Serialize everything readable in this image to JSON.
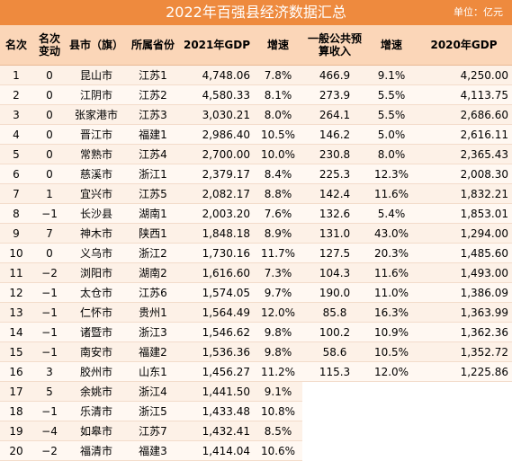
{
  "header": {
    "title": "2022年百强县经济数据汇总",
    "unit": "单位：亿元"
  },
  "table": {
    "columns": [
      "名次",
      "名次变动",
      "县市（旗）",
      "所属省份",
      "2021年GDP",
      "增速",
      "一般公共预算收入",
      "增速",
      "2020年GDP"
    ],
    "rows": [
      [
        "1",
        "0",
        "昆山市",
        "江苏1",
        "4,748.06",
        "7.8%",
        "466.9",
        "9.1%",
        "4,250.00"
      ],
      [
        "2",
        "0",
        "江阴市",
        "江苏2",
        "4,580.33",
        "8.1%",
        "273.9",
        "5.5%",
        "4,113.75"
      ],
      [
        "3",
        "0",
        "张家港市",
        "江苏3",
        "3,030.21",
        "8.0%",
        "264.1",
        "5.5%",
        "2,686.60"
      ],
      [
        "4",
        "0",
        "晋江市",
        "福建1",
        "2,986.40",
        "10.5%",
        "146.2",
        "5.0%",
        "2,616.11"
      ],
      [
        "5",
        "0",
        "常熟市",
        "江苏4",
        "2,700.00",
        "10.0%",
        "230.8",
        "8.0%",
        "2,365.43"
      ],
      [
        "6",
        "0",
        "慈溪市",
        "浙江1",
        "2,379.17",
        "8.4%",
        "225.3",
        "12.3%",
        "2,008.30"
      ],
      [
        "7",
        "1",
        "宜兴市",
        "江苏5",
        "2,082.17",
        "8.8%",
        "142.4",
        "11.6%",
        "1,832.21"
      ],
      [
        "8",
        "−1",
        "长沙县",
        "湖南1",
        "2,003.20",
        "7.6%",
        "132.6",
        "5.4%",
        "1,853.01"
      ],
      [
        "9",
        "7",
        "神木市",
        "陕西1",
        "1,848.18",
        "8.9%",
        "131.0",
        "43.0%",
        "1,294.00"
      ],
      [
        "10",
        "0",
        "义乌市",
        "浙江2",
        "1,730.16",
        "11.7%",
        "127.5",
        "20.3%",
        "1,485.60"
      ],
      [
        "11",
        "−2",
        "浏阳市",
        "湖南2",
        "1,616.60",
        "7.3%",
        "104.3",
        "11.6%",
        "1,493.00"
      ],
      [
        "12",
        "−1",
        "太仓市",
        "江苏6",
        "1,574.05",
        "9.7%",
        "190.0",
        "11.0%",
        "1,386.09"
      ],
      [
        "13",
        "−1",
        "仁怀市",
        "贵州1",
        "1,564.49",
        "12.0%",
        "85.8",
        "16.3%",
        "1,363.99"
      ],
      [
        "14",
        "−1",
        "诸暨市",
        "浙江3",
        "1,546.62",
        "9.8%",
        "100.2",
        "10.9%",
        "1,362.36"
      ],
      [
        "15",
        "−1",
        "南安市",
        "福建2",
        "1,536.36",
        "9.8%",
        "58.6",
        "10.5%",
        "1,352.72"
      ],
      [
        "16",
        "3",
        "胶州市",
        "山东1",
        "1,456.27",
        "11.2%",
        "115.3",
        "12.0%",
        "1,225.86"
      ],
      [
        "17",
        "5",
        "余姚市",
        "浙江4",
        "1,441.50",
        "9.1%"
      ],
      [
        "18",
        "−1",
        "乐清市",
        "浙江5",
        "1,433.48",
        "10.8%"
      ],
      [
        "19",
        "−4",
        "如皋市",
        "江苏7",
        "1,432.41",
        "8.5%"
      ],
      [
        "20",
        "−2",
        "福清市",
        "福建3",
        "1,414.04",
        "10.6%"
      ]
    ]
  }
}
